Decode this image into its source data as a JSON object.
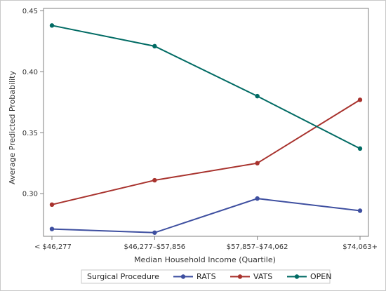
{
  "chart_data": {
    "type": "line",
    "title": "",
    "xlabel": "Median Household Income (Quartile)",
    "ylabel": "Average Predicted Probability",
    "categories": [
      "< $46,277",
      "$46,277–$57,856",
      "$57,857–$74,062",
      "$74,063+"
    ],
    "ylim": [
      0.265,
      0.452
    ],
    "yticks": [
      0.3,
      0.35,
      0.4,
      0.45
    ],
    "ytick_labels": [
      "0.30",
      "0.35",
      "0.40",
      "0.45"
    ],
    "grid": false,
    "legend": {
      "title": "Surgical Procedure",
      "placement": "bottom"
    },
    "series": [
      {
        "name": "RATS",
        "color": "#3e4fa0",
        "values": [
          0.271,
          0.268,
          0.296,
          0.286
        ]
      },
      {
        "name": "VATS",
        "color": "#a8322d",
        "values": [
          0.291,
          0.311,
          0.325,
          0.377
        ]
      },
      {
        "name": "OPEN",
        "color": "#016b64",
        "values": [
          0.438,
          0.421,
          0.38,
          0.337
        ]
      }
    ]
  }
}
